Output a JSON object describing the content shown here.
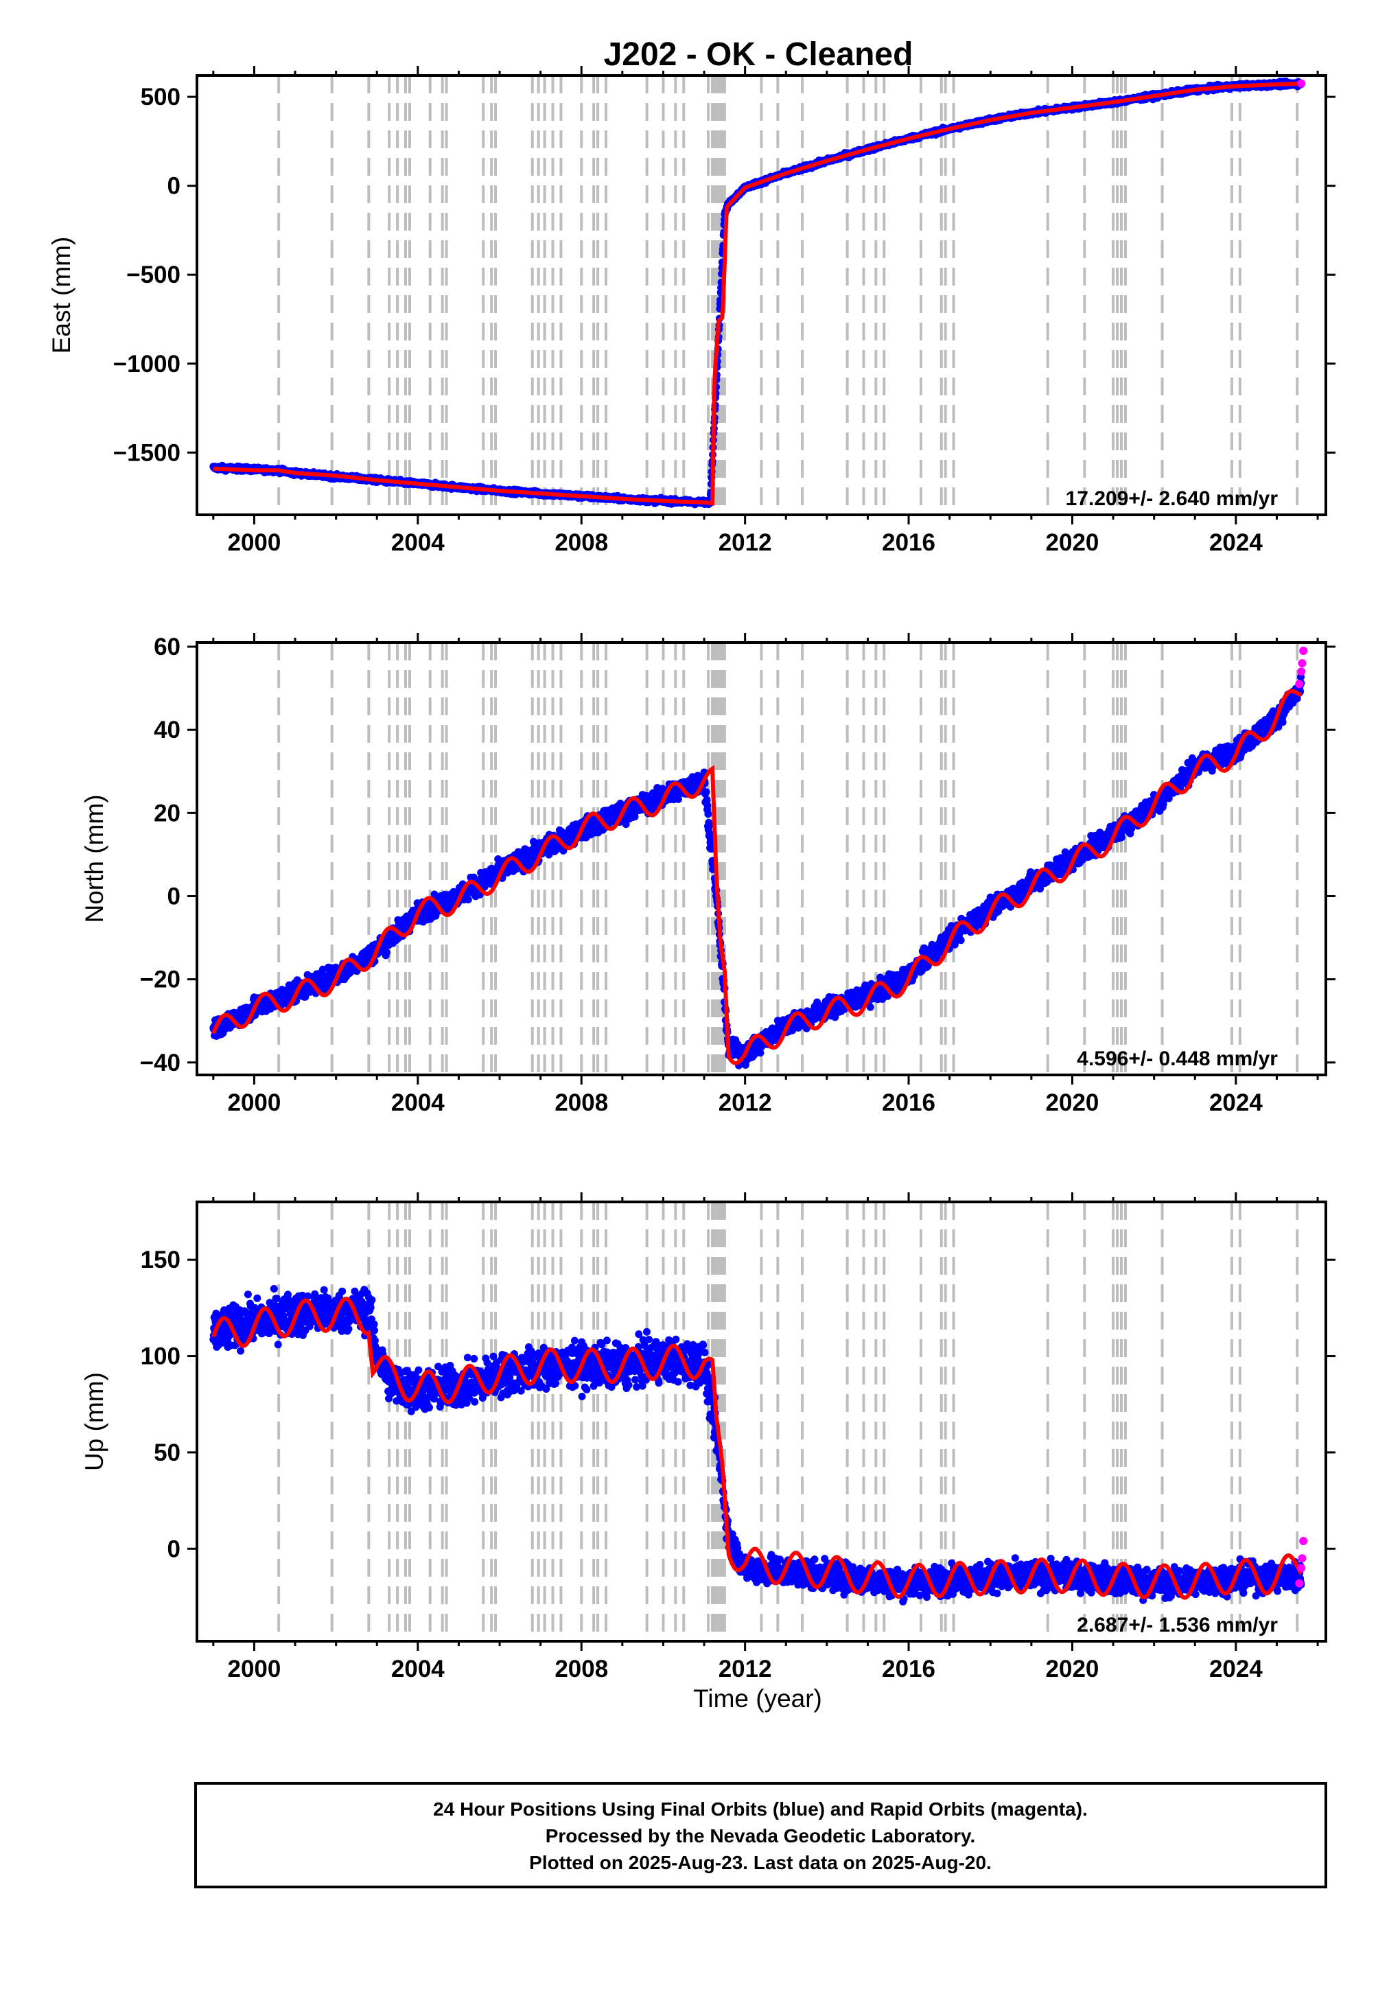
{
  "title": "J202  - OK - Cleaned",
  "xlabel": "Time (year)",
  "footer": {
    "line1": "24 Hour Positions Using Final Orbits (blue) and Rapid Orbits (magenta).",
    "line2": "Processed by the Nevada Geodetic Laboratory.",
    "line3": "Plotted on 2025-Aug-23. Last data on 2025-Aug-20."
  },
  "colors": {
    "final_orbits": "#0000ff",
    "rapid_orbits": "#ff00ff",
    "model_fit": "#ff0000",
    "event_lines": "#bdbdbd"
  },
  "chart_data": [
    {
      "type": "scatter",
      "component": "east",
      "ylabel": "East (mm)",
      "xlim": [
        1998.6,
        2026.2
      ],
      "ylim": [
        -1850,
        620
      ],
      "xticks": [
        2000,
        2004,
        2008,
        2012,
        2016,
        2020,
        2024
      ],
      "yticks": [
        -1500,
        -1000,
        -500,
        0,
        500
      ],
      "grid": false,
      "rate_label": "17.209+/- 2.640 mm/yr",
      "series": [
        {
          "name": "Final Orbits",
          "color": "#0000ff",
          "x": [
            1999.0,
            2000.0,
            2000.6,
            2001.0,
            2002.0,
            2003.0,
            2004.0,
            2005.0,
            2006.0,
            2007.0,
            2008.0,
            2009.0,
            2010.0,
            2011.0,
            2011.15,
            2011.5,
            2011.6,
            2012.0,
            2013.0,
            2014.0,
            2015.0,
            2016.0,
            2017.0,
            2018.0,
            2019.0,
            2020.0,
            2021.0,
            2022.0,
            2023.0,
            2024.0,
            2025.0,
            2025.6
          ],
          "y": [
            -1585,
            -1595,
            -1600,
            -1615,
            -1635,
            -1655,
            -1675,
            -1695,
            -1715,
            -1730,
            -1745,
            -1760,
            -1772,
            -1780,
            -1780,
            -160,
            -100,
            -10,
            70,
            140,
            205,
            265,
            320,
            370,
            410,
            440,
            470,
            505,
            540,
            560,
            570,
            575
          ]
        },
        {
          "name": "Rapid Orbits",
          "color": "#ff00ff",
          "x": [
            2025.6
          ],
          "y": [
            575
          ]
        },
        {
          "name": "Model Fit",
          "color": "#ff0000",
          "x": [
            1999.0,
            2000.0,
            2000.6,
            2001.0,
            2002.0,
            2003.0,
            2004.0,
            2005.0,
            2006.0,
            2007.0,
            2008.0,
            2009.0,
            2010.0,
            2011.0,
            2011.2,
            2011.25,
            2011.35,
            2011.45,
            2011.55,
            2012.0,
            2013.0,
            2014.0,
            2015.0,
            2016.0,
            2017.0,
            2018.0,
            2019.0,
            2020.0,
            2021.0,
            2022.0,
            2023.0,
            2024.0,
            2025.0,
            2025.6
          ],
          "y": [
            -1590,
            -1600,
            -1600,
            -1615,
            -1630,
            -1655,
            -1675,
            -1695,
            -1715,
            -1730,
            -1745,
            -1760,
            -1772,
            -1780,
            -1785,
            -1100,
            -760,
            -740,
            -120,
            -10,
            70,
            140,
            205,
            265,
            320,
            370,
            410,
            440,
            470,
            505,
            540,
            560,
            570,
            575
          ]
        }
      ]
    },
    {
      "type": "scatter",
      "component": "north",
      "ylabel": "North (mm)",
      "xlim": [
        1998.6,
        2026.2
      ],
      "ylim": [
        -43,
        61
      ],
      "xticks": [
        2000,
        2004,
        2008,
        2012,
        2016,
        2020,
        2024
      ],
      "yticks": [
        -40,
        -20,
        0,
        20,
        40,
        60
      ],
      "grid": false,
      "rate_label": "4.596+/- 0.448 mm/yr",
      "series": [
        {
          "name": "Final Orbits",
          "color": "#0000ff",
          "x": [
            1999.0,
            2000.0,
            2001.0,
            2002.0,
            2003.0,
            2004.0,
            2005.0,
            2006.0,
            2007.0,
            2008.0,
            2009.0,
            2010.0,
            2011.0,
            2011.3,
            2011.6,
            2012.0,
            2013.0,
            2014.0,
            2015.0,
            2016.0,
            2017.0,
            2018.0,
            2019.0,
            2020.0,
            2021.0,
            2022.0,
            2023.0,
            2024.0,
            2025.0,
            2025.6
          ],
          "y": [
            -32,
            -27,
            -23,
            -19,
            -13,
            -4,
            0,
            6,
            11,
            16,
            20,
            24,
            28,
            0,
            -37,
            -38,
            -31,
            -27,
            -24,
            -19,
            -10,
            -3,
            3,
            9,
            15,
            22,
            31,
            35,
            43,
            50
          ]
        },
        {
          "name": "Rapid Orbits",
          "color": "#ff00ff",
          "x": [
            2025.55,
            2025.6,
            2025.62,
            2025.65
          ],
          "y": [
            51,
            54,
            56,
            59
          ]
        },
        {
          "name": "Model Fit",
          "color": "#ff0000",
          "x": [
            1999.0,
            2000.0,
            2001.0,
            2002.0,
            2003.0,
            2004.0,
            2005.0,
            2006.0,
            2007.0,
            2008.0,
            2009.0,
            2010.0,
            2011.0,
            2011.2,
            2011.3,
            2011.4,
            2011.5,
            2011.6,
            2012.0,
            2013.0,
            2014.0,
            2015.0,
            2016.0,
            2017.0,
            2018.0,
            2019.0,
            2020.0,
            2021.0,
            2022.0,
            2023.0,
            2024.0,
            2025.0,
            2025.6
          ],
          "y": [
            -33,
            -27,
            -24,
            -20,
            -13,
            -4,
            -1,
            5,
            10,
            16,
            20,
            23,
            28,
            28,
            2,
            -13,
            -18,
            -37,
            -38,
            -32,
            -28,
            -25,
            -20,
            -11,
            -4,
            2,
            8,
            14,
            22,
            30,
            34,
            43,
            50
          ]
        }
      ]
    },
    {
      "type": "scatter",
      "component": "up",
      "ylabel": "Up (mm)",
      "xlim": [
        1998.6,
        2026.2
      ],
      "ylim": [
        -48,
        180
      ],
      "xticks": [
        2000,
        2004,
        2008,
        2012,
        2016,
        2020,
        2024
      ],
      "yticks": [
        0,
        50,
        100,
        150
      ],
      "grid": false,
      "rate_label": "2.687+/- 1.536 mm/yr",
      "series": [
        {
          "name": "Final Orbits",
          "color": "#0000ff",
          "x": [
            1999.0,
            2000.0,
            2001.0,
            2002.0,
            2002.8,
            2003.0,
            2003.4,
            2004.0,
            2005.0,
            2006.0,
            2007.0,
            2008.0,
            2009.0,
            2010.0,
            2011.0,
            2011.3,
            2011.6,
            2012.0,
            2013.0,
            2014.0,
            2015.0,
            2016.0,
            2017.0,
            2018.0,
            2019.0,
            2020.0,
            2021.0,
            2022.0,
            2023.0,
            2024.0,
            2025.0,
            2025.6
          ],
          "y": [
            112,
            118,
            122,
            123,
            124,
            100,
            85,
            82,
            84,
            90,
            94,
            95,
            95,
            98,
            96,
            60,
            5,
            -10,
            -12,
            -14,
            -16,
            -18,
            -16,
            -15,
            -14,
            -14,
            -16,
            -18,
            -17,
            -15,
            -15,
            -14
          ]
        },
        {
          "name": "Rapid Orbits",
          "color": "#ff00ff",
          "x": [
            2025.55,
            2025.6,
            2025.62,
            2025.65
          ],
          "y": [
            -18,
            -10,
            -5,
            4
          ]
        },
        {
          "name": "Model Fit",
          "color": "#ff0000",
          "x": [
            1999.0,
            2000.0,
            2001.0,
            2002.0,
            2002.8,
            2002.9,
            2003.3,
            2004.0,
            2005.0,
            2006.0,
            2007.0,
            2008.0,
            2009.0,
            2010.0,
            2011.0,
            2011.2,
            2011.3,
            2011.45,
            2011.6,
            2012.0,
            2013.0,
            2014.0,
            2015.0,
            2016.0,
            2017.0,
            2018.0,
            2019.0,
            2020.0,
            2021.0,
            2022.0,
            2023.0,
            2024.0,
            2025.0,
            2025.6
          ],
          "y": [
            110,
            115,
            120,
            122,
            120,
            96,
            90,
            83,
            85,
            91,
            95,
            95,
            95,
            97,
            97,
            90,
            60,
            40,
            2,
            -8,
            -10,
            -12,
            -15,
            -17,
            -16,
            -15,
            -14,
            -14,
            -16,
            -17,
            -17,
            -14,
            -15,
            -8
          ]
        }
      ]
    }
  ]
}
